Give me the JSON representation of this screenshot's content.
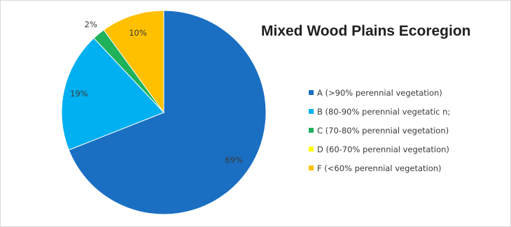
{
  "chart_data": {
    "type": "pie",
    "title": "Mixed Wood Plains Ecoregion",
    "categories": [
      "A (>90% perennial vegetation)",
      "B (80-90% perennial vegetatic n;",
      "C (70-80% perennial vegetation)",
      "D (60-70% perennial vegetation)",
      "F (<60% perennial vegetation)"
    ],
    "values": [
      69,
      19,
      2,
      0,
      10
    ],
    "data_labels": [
      "69%",
      "19%",
      "2%",
      "",
      "10%"
    ],
    "colors": [
      "#1a6fc2",
      "#00b0f0",
      "#1fb25a",
      "#ffff00",
      "#ffc000"
    ],
    "legend_position": "right",
    "grid": false
  }
}
